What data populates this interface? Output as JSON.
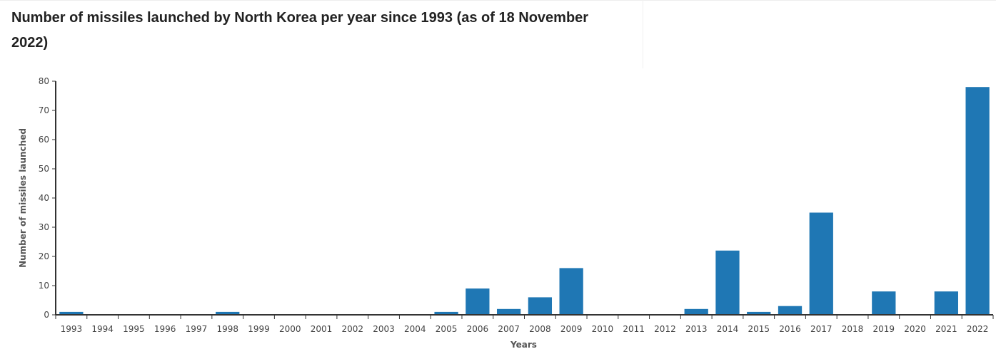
{
  "chart_data": {
    "type": "bar",
    "title": "Number of missiles launched by North Korea per year since 1993 (as of 18 November 2022)",
    "xlabel": "Years",
    "ylabel": "Number of missiles launched",
    "ylim": [
      0,
      80
    ],
    "yticks": [
      0,
      10,
      20,
      30,
      40,
      50,
      60,
      70,
      80
    ],
    "categories": [
      "1993",
      "1994",
      "1995",
      "1996",
      "1997",
      "1998",
      "1999",
      "2000",
      "2001",
      "2002",
      "2003",
      "2004",
      "2005",
      "2006",
      "2007",
      "2008",
      "2009",
      "2010",
      "2011",
      "2012",
      "2013",
      "2014",
      "2015",
      "2016",
      "2017",
      "2018",
      "2019",
      "2020",
      "2021",
      "2022"
    ],
    "values": [
      1,
      0,
      0,
      0,
      0,
      1,
      0,
      0,
      0,
      0,
      0,
      0,
      1,
      9,
      2,
      6,
      16,
      0,
      0,
      0,
      2,
      22,
      1,
      3,
      35,
      0,
      8,
      0,
      8,
      78
    ],
    "bar_color": "#1f77b4",
    "grid": false,
    "legend": "none"
  }
}
